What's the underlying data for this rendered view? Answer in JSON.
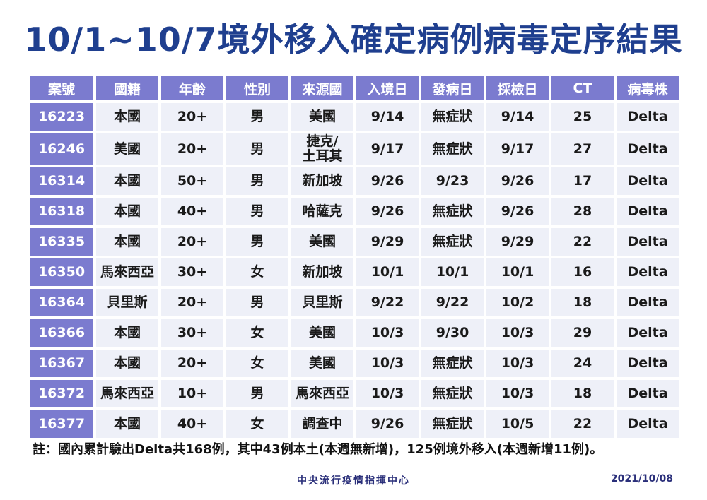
{
  "title": "10/1~10/7境外移入確定病例病毒定序結果",
  "table": {
    "headers": [
      "案號",
      "國籍",
      "年齡",
      "性別",
      "來源國",
      "入境日",
      "發病日",
      "採檢日",
      "CT",
      "病毒株"
    ],
    "rows": [
      [
        "16223",
        "本國",
        "20+",
        "男",
        "美國",
        "9/14",
        "無症狀",
        "9/14",
        "25",
        "Delta"
      ],
      [
        "16246",
        "美國",
        "20+",
        "男",
        "捷克/\n土耳其",
        "9/17",
        "無症狀",
        "9/17",
        "27",
        "Delta"
      ],
      [
        "16314",
        "本國",
        "50+",
        "男",
        "新加坡",
        "9/26",
        "9/23",
        "9/26",
        "17",
        "Delta"
      ],
      [
        "16318",
        "本國",
        "40+",
        "男",
        "哈薩克",
        "9/26",
        "無症狀",
        "9/26",
        "28",
        "Delta"
      ],
      [
        "16335",
        "本國",
        "20+",
        "男",
        "美國",
        "9/29",
        "無症狀",
        "9/29",
        "22",
        "Delta"
      ],
      [
        "16350",
        "馬來西亞",
        "30+",
        "女",
        "新加坡",
        "10/1",
        "10/1",
        "10/1",
        "16",
        "Delta"
      ],
      [
        "16364",
        "貝里斯",
        "20+",
        "男",
        "貝里斯",
        "9/22",
        "9/22",
        "10/2",
        "18",
        "Delta"
      ],
      [
        "16366",
        "本國",
        "30+",
        "女",
        "美國",
        "10/3",
        "9/30",
        "10/3",
        "29",
        "Delta"
      ],
      [
        "16367",
        "本國",
        "20+",
        "女",
        "美國",
        "10/3",
        "無症狀",
        "10/3",
        "24",
        "Delta"
      ],
      [
        "16372",
        "馬來西亞",
        "10+",
        "男",
        "馬來西亞",
        "10/3",
        "無症狀",
        "10/3",
        "18",
        "Delta"
      ],
      [
        "16377",
        "本國",
        "40+",
        "女",
        "調查中",
        "9/26",
        "無症狀",
        "10/5",
        "22",
        "Delta"
      ]
    ]
  },
  "note": "註：國內累計驗出Delta共168例，其中43例本土(本週無新增)，125例境外移入(本週新增11例)。",
  "footer": {
    "org": "中央流行疫情指揮中心",
    "date": "2021/10/08"
  },
  "colors": {
    "title": "#1f3f8f",
    "header_bg": "#7b7bcf",
    "cell_bg": "#eef0f8",
    "footer": "#2a2f7a"
  }
}
